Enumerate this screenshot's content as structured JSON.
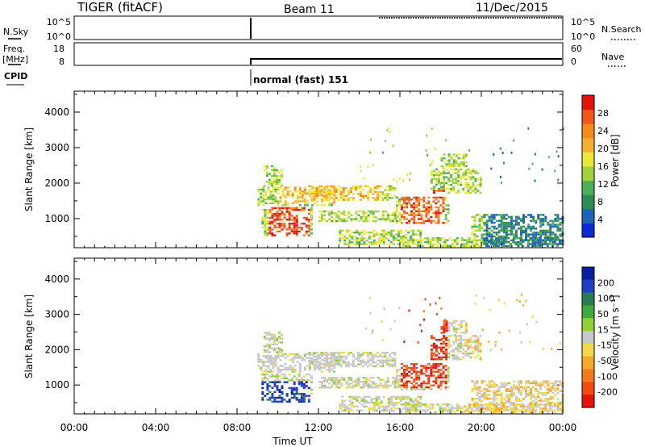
{
  "header": {
    "title": "TIGER (fitACF)",
    "beam": "Beam 11",
    "date": "11/Dec/2015"
  },
  "nsky": {
    "label": "N.Sky",
    "left_ticks": [
      "10^5",
      "10^0"
    ],
    "right_ticks": [
      "10^5",
      "10^0"
    ],
    "right_label": "N.Search"
  },
  "freq": {
    "label_line1": "Freq.",
    "label_line2": "[MHz]",
    "left_ticks": [
      "18",
      "8"
    ],
    "right_ticks": [
      "60",
      "0"
    ],
    "right_label": "Nave"
  },
  "cpid": {
    "label": "CPID",
    "mode_text": "normal (fast) 151"
  },
  "chart_data": [
    {
      "type": "heatmap",
      "name": "power",
      "ylabel": "Slant Range [km]",
      "xlabel": "Time UT",
      "x_ticks": [
        "00:00",
        "04:00",
        "08:00",
        "12:00",
        "16:00",
        "20:00",
        "00:00"
      ],
      "x_range_hours": [
        0,
        24
      ],
      "y_ticks": [
        "1000",
        "2000",
        "3000",
        "4000"
      ],
      "y_range_km": [
        180,
        4590
      ],
      "data_start_hour": 8.8,
      "colorbar": {
        "label": "Power [dB]",
        "ticks": [
          "4",
          "8",
          "12",
          "16",
          "20",
          "24",
          "28"
        ],
        "colors": [
          "#0a2bd6",
          "#1f64b4",
          "#2e8b57",
          "#4fae5a",
          "#9fd13a",
          "#e8e83a",
          "#f5b031",
          "#f48a1e",
          "#f2561a",
          "#e3130f"
        ]
      }
    },
    {
      "type": "heatmap",
      "name": "velocity",
      "ylabel": "Slant Range [km]",
      "xlabel": "Time UT",
      "x_ticks": [
        "00:00",
        "04:00",
        "08:00",
        "12:00",
        "16:00",
        "20:00",
        "00:00"
      ],
      "x_range_hours": [
        0,
        24
      ],
      "y_ticks": [
        "1000",
        "2000",
        "3000",
        "4000"
      ],
      "y_range_km": [
        180,
        4590
      ],
      "data_start_hour": 8.8,
      "colorbar": {
        "label": "Velocity [m s⁻¹]",
        "ticks": [
          "200",
          "100",
          "50",
          "15",
          "-15",
          "-50",
          "-100",
          "-200"
        ],
        "colors": [
          "#0a1fa0",
          "#1f3fc8",
          "#2a7a52",
          "#3fa83f",
          "#8fd03a",
          "#c8c8c8",
          "#f2d84a",
          "#f5a829",
          "#f47a1c",
          "#f24a16",
          "#e3130f"
        ]
      }
    }
  ]
}
